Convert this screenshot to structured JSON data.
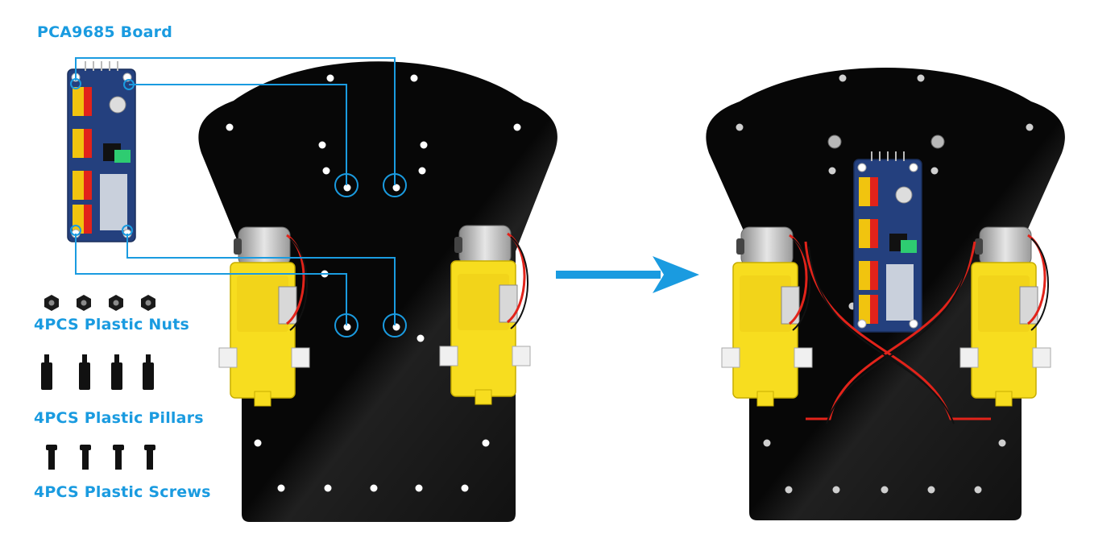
{
  "labels": {
    "board": "PCA9685 Board",
    "nuts": "4PCS Plastic Nuts",
    "pillars": "4PCS Plastic Pillars",
    "screws": "4PCS Plastic Screws"
  },
  "colors": {
    "accent": "#1a9be0",
    "chassis": "#070707",
    "motor_yellow": "#f7dd1f",
    "pcb_blue": "#24407e",
    "wire_red": "#e2231a"
  },
  "icons": [
    "arrow-right-icon",
    "nut-icon",
    "pillar-icon",
    "screw-icon"
  ]
}
